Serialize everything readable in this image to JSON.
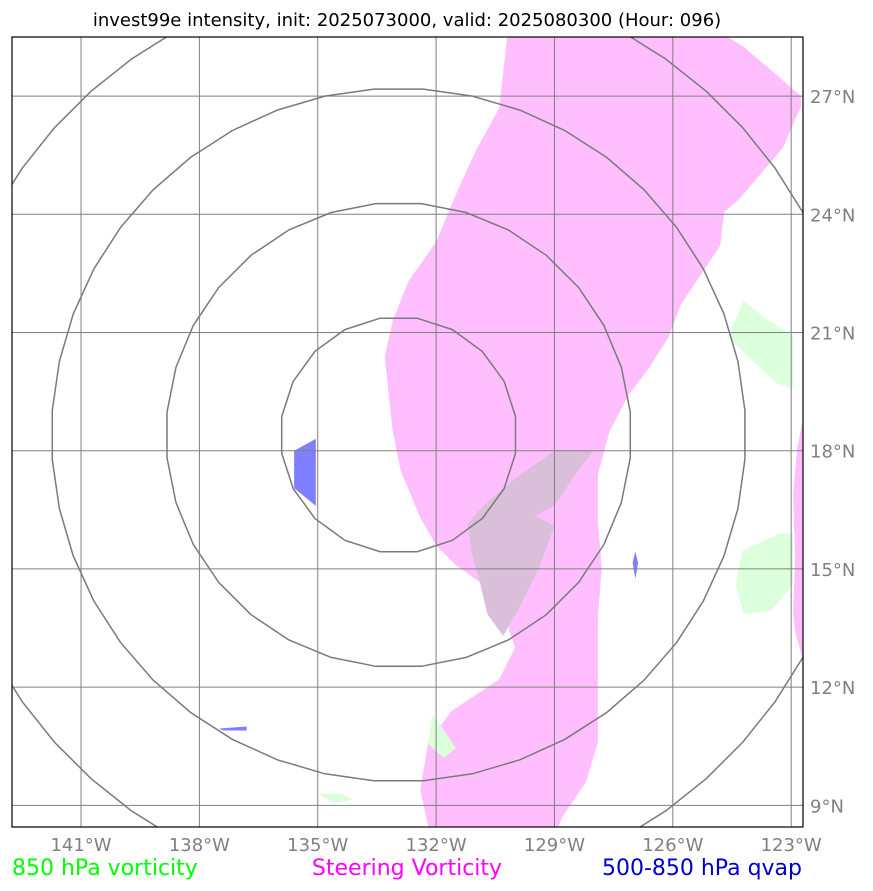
{
  "chart_data": {
    "type": "map",
    "title": "invest99e intensity, init: 2025073000, valid: 2025080300 (Hour: 096)",
    "xlim": [
      -142.75,
      -122.7
    ],
    "ylim": [
      8.45,
      28.5
    ],
    "lon_ticks": [
      {
        "value": -141,
        "label": "141°W"
      },
      {
        "value": -138,
        "label": "138°W"
      },
      {
        "value": -135,
        "label": "135°W"
      },
      {
        "value": -132,
        "label": "132°W"
      },
      {
        "value": -129,
        "label": "129°W"
      },
      {
        "value": -126,
        "label": "126°W"
      },
      {
        "value": -123,
        "label": "123°W"
      }
    ],
    "lat_ticks": [
      {
        "value": 9,
        "label": "9°N"
      },
      {
        "value": 12,
        "label": "12°N"
      },
      {
        "value": 15,
        "label": "15°N"
      },
      {
        "value": 18,
        "label": "18°N"
      },
      {
        "value": 21,
        "label": "21°N"
      },
      {
        "value": 24,
        "label": "24°N"
      },
      {
        "value": 27,
        "label": "27°N"
      }
    ],
    "grid": true,
    "range_rings": {
      "center": [
        -132.95,
        18.4
      ],
      "radii_deg": [
        3.0,
        5.9,
        8.8,
        11.7
      ]
    },
    "legend": [
      {
        "label": "850 hPa vorticity",
        "color": "#00ff00",
        "position": "bottom-left"
      },
      {
        "label": "Steering Vorticity",
        "color": "#ff00ff",
        "position": "bottom-center"
      },
      {
        "label": "500-850 hPa qvap",
        "color": "#0000cc",
        "position": "bottom-right"
      }
    ],
    "fields": [
      {
        "name": "steering_vorticity",
        "color": "#ffbfff",
        "polygons": [
          [
            [
              -130.2,
              28.5
            ],
            [
              -127.8,
              28.5
            ],
            [
              -126.2,
              28.5
            ],
            [
              -124.6,
              28.5
            ],
            [
              -124.2,
              28.25
            ],
            [
              -123.5,
              27.65
            ],
            [
              -122.75,
              27.0
            ],
            [
              -122.75,
              26.75
            ],
            [
              -123.2,
              25.7
            ],
            [
              -124.3,
              24.4
            ],
            [
              -124.7,
              24.05
            ],
            [
              -124.8,
              23.2
            ],
            [
              -125.3,
              22.45
            ],
            [
              -125.8,
              21.7
            ],
            [
              -126.1,
              20.9
            ],
            [
              -126.6,
              20.1
            ],
            [
              -127.1,
              19.45
            ],
            [
              -127.6,
              18.5
            ],
            [
              -127.9,
              17.4
            ],
            [
              -127.9,
              16.2
            ],
            [
              -127.8,
              15.0
            ],
            [
              -127.9,
              13.8
            ],
            [
              -127.9,
              12.6
            ],
            [
              -127.9,
              11.6
            ],
            [
              -127.9,
              10.6
            ],
            [
              -128.2,
              9.6
            ],
            [
              -128.8,
              8.7
            ],
            [
              -128.9,
              8.45
            ],
            [
              -132.2,
              8.45
            ],
            [
              -132.4,
              9.4
            ],
            [
              -132.2,
              10.6
            ],
            [
              -131.6,
              11.4
            ],
            [
              -130.4,
              12.2
            ],
            [
              -130.0,
              13.0
            ],
            [
              -130.3,
              13.9
            ],
            [
              -130.8,
              14.6
            ],
            [
              -131.5,
              15.1
            ],
            [
              -132.0,
              15.6
            ],
            [
              -132.4,
              16.3
            ],
            [
              -132.9,
              17.5
            ],
            [
              -133.1,
              18.5
            ],
            [
              -133.2,
              19.4
            ],
            [
              -133.3,
              20.4
            ],
            [
              -133.1,
              21.3
            ],
            [
              -132.7,
              22.3
            ],
            [
              -132.0,
              23.3
            ],
            [
              -131.5,
              24.5
            ],
            [
              -131.0,
              25.6
            ],
            [
              -130.4,
              26.7
            ]
          ],
          [
            [
              -122.7,
              18.8
            ],
            [
              -122.85,
              18.05
            ],
            [
              -122.95,
              16.9
            ],
            [
              -122.9,
              15.3
            ],
            [
              -122.95,
              13.9
            ],
            [
              -122.9,
              13.4
            ],
            [
              -122.7,
              12.7
            ]
          ]
        ]
      },
      {
        "name": "overlap_steering_and_qvap",
        "color": "#d9bfd9",
        "polygons": [
          [
            [
              -129.0,
              18.0
            ],
            [
              -128.0,
              18.0
            ],
            [
              -128.4,
              17.5
            ],
            [
              -129.0,
              16.6
            ],
            [
              -129.5,
              16.35
            ],
            [
              -129.0,
              16.1
            ],
            [
              -129.4,
              15.0
            ],
            [
              -129.9,
              14.0
            ],
            [
              -130.3,
              13.3
            ],
            [
              -130.7,
              13.85
            ],
            [
              -130.9,
              14.7
            ],
            [
              -131.1,
              15.4
            ],
            [
              -131.2,
              16.15
            ],
            [
              -130.8,
              16.6
            ],
            [
              -130.0,
              17.3
            ]
          ]
        ]
      },
      {
        "name": "850_hPa_vorticity",
        "color": "#dcffdc",
        "polygons": [
          [
            [
              -124.2,
              21.8
            ],
            [
              -123.7,
              21.4
            ],
            [
              -122.95,
              20.9
            ],
            [
              -122.95,
              19.6
            ],
            [
              -123.35,
              19.7
            ],
            [
              -124.0,
              20.3
            ],
            [
              -124.6,
              20.9
            ]
          ],
          [
            [
              -124.25,
              15.45
            ],
            [
              -123.3,
              15.9
            ],
            [
              -122.95,
              15.9
            ],
            [
              -122.95,
              14.6
            ],
            [
              -123.5,
              13.95
            ],
            [
              -124.2,
              13.85
            ],
            [
              -124.4,
              14.6
            ]
          ],
          [
            [
              -132.1,
              11.3
            ],
            [
              -131.8,
              10.9
            ],
            [
              -131.5,
              10.45
            ],
            [
              -131.8,
              10.2
            ],
            [
              -132.2,
              10.55
            ]
          ],
          [
            [
              -135.0,
              9.3
            ],
            [
              -134.4,
              9.3
            ],
            [
              -134.1,
              9.15
            ],
            [
              -134.6,
              9.05
            ]
          ]
        ]
      },
      {
        "name": "500-850_hPa_qvap",
        "color": "#7f7fff",
        "polygons": [
          [
            [
              -135.6,
              18.0
            ],
            [
              -135.05,
              18.3
            ],
            [
              -135.05,
              17.3
            ],
            [
              -135.05,
              16.6
            ],
            [
              -135.6,
              17.05
            ]
          ],
          [
            [
              -126.95,
              15.45
            ],
            [
              -126.88,
              15.15
            ],
            [
              -126.95,
              14.75
            ],
            [
              -127.02,
              15.15
            ]
          ],
          [
            [
              -137.5,
              10.95
            ],
            [
              -136.8,
              11.0
            ],
            [
              -136.8,
              10.9
            ],
            [
              -137.4,
              10.9
            ]
          ]
        ]
      }
    ]
  }
}
